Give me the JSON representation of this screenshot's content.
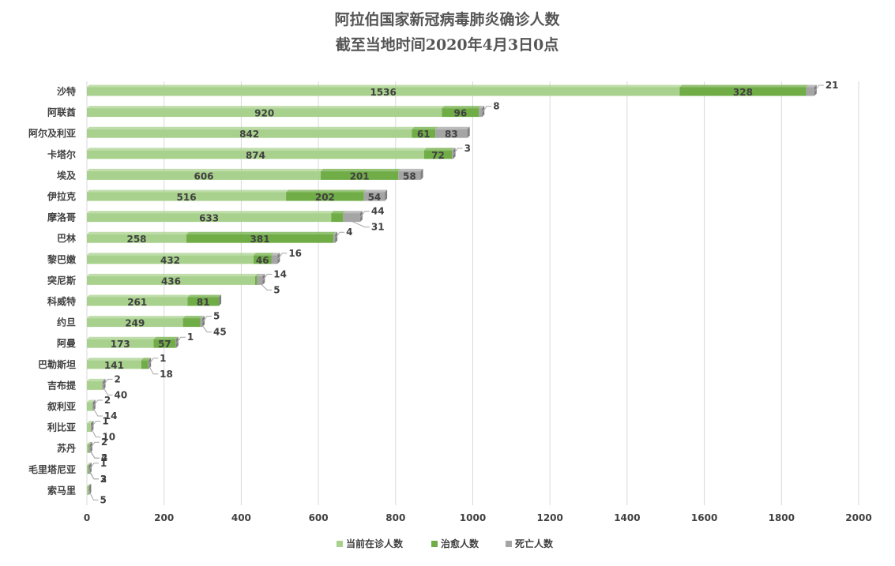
{
  "chart_data": {
    "type": "bar",
    "orientation": "horizontal",
    "stacked": true,
    "title": "阿拉伯国家新冠病毒肺炎确诊人数",
    "subtitle": "截至当地时间2020年4月3日0点",
    "categories": [
      "沙特",
      "阿联酋",
      "阿尔及利亚",
      "卡塔尔",
      "埃及",
      "伊拉克",
      "摩洛哥",
      "巴林",
      "黎巴嫩",
      "突尼斯",
      "科威特",
      "约旦",
      "阿曼",
      "巴勒斯坦",
      "吉布提",
      "叙利亚",
      "利比亚",
      "苏丹",
      "毛里塔尼亚",
      "索马里"
    ],
    "series": [
      {
        "name": "当前在诊人数",
        "color": "#a9d18e",
        "values": [
          1536,
          920,
          842,
          874,
          606,
          516,
          633,
          258,
          432,
          436,
          261,
          249,
          173,
          141,
          40,
          14,
          10,
          4,
          3,
          5
        ]
      },
      {
        "name": "治愈人数",
        "color": "#70ad47",
        "values": [
          328,
          96,
          61,
          72,
          201,
          202,
          31,
          381,
          46,
          5,
          81,
          45,
          57,
          18,
          0,
          0,
          0,
          2,
          2,
          0
        ]
      },
      {
        "name": "死亡人数",
        "color": "#a5a5a5",
        "values": [
          21,
          8,
          83,
          3,
          58,
          54,
          44,
          4,
          16,
          14,
          0,
          5,
          1,
          1,
          2,
          2,
          1,
          2,
          1,
          0
        ]
      }
    ],
    "data_labels": [
      [
        "1536",
        "328",
        "21"
      ],
      [
        "920",
        "96",
        "8"
      ],
      [
        "842",
        "61",
        "83"
      ],
      [
        "874",
        "72",
        "3"
      ],
      [
        "606",
        "201",
        "58"
      ],
      [
        "516",
        "202",
        "54"
      ],
      [
        "633",
        "31",
        "44"
      ],
      [
        "258",
        "381",
        "4"
      ],
      [
        "432",
        "46",
        "16"
      ],
      [
        "436",
        "5",
        "14"
      ],
      [
        "261",
        "81",
        ""
      ],
      [
        "249",
        "45",
        "5"
      ],
      [
        "173",
        "57",
        "1"
      ],
      [
        "141",
        "18",
        "1"
      ],
      [
        "40",
        "",
        "2"
      ],
      [
        "14",
        "",
        "2"
      ],
      [
        "10",
        "",
        "1"
      ],
      [
        "4",
        "2",
        "2"
      ],
      [
        "3",
        "2",
        "1"
      ],
      [
        "5",
        "",
        ""
      ]
    ],
    "xlim": [
      0,
      2000
    ],
    "x_ticks": [
      "0",
      "200",
      "400",
      "600",
      "800",
      "1000",
      "1200",
      "1400",
      "1600",
      "1800",
      "2000"
    ],
    "grid": true,
    "legend_position": "bottom"
  }
}
